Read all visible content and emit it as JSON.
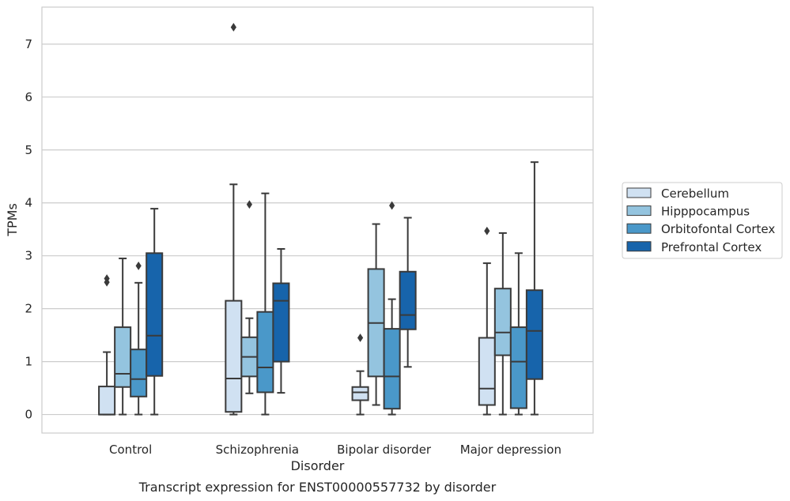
{
  "chart_data": {
    "type": "box",
    "caption": "Transcript expression for ENST00000557732 by disorder",
    "xlabel": "Disorder",
    "ylabel": "TPMs",
    "ylim": [
      -0.35,
      7.7
    ],
    "yticks": [
      0,
      1,
      2,
      3,
      4,
      5,
      6,
      7
    ],
    "grid": true,
    "legend_position": "right",
    "categories": [
      "Control",
      "Schizophrenia",
      "Bipolar disorder",
      "Major depression"
    ],
    "series": [
      {
        "name": "Cerebellum",
        "color": "#d0e1f2",
        "boxes": [
          {
            "whisker_low": 0,
            "q1": 0,
            "median": 0,
            "q3": 0.53,
            "whisker_high": 1.18,
            "outliers": [
              2.5,
              2.57
            ]
          },
          {
            "whisker_low": 0,
            "q1": 0.05,
            "median": 0.68,
            "q3": 2.15,
            "whisker_high": 4.35,
            "outliers": [
              7.32
            ]
          },
          {
            "whisker_low": 0,
            "q1": 0.27,
            "median": 0.42,
            "q3": 0.52,
            "whisker_high": 0.82,
            "outliers": [
              1.45
            ]
          },
          {
            "whisker_low": 0,
            "q1": 0.18,
            "median": 0.49,
            "q3": 1.45,
            "whisker_high": 2.86,
            "outliers": [
              3.47
            ]
          }
        ]
      },
      {
        "name": "Hipppocampus",
        "color": "#94c4df",
        "boxes": [
          {
            "whisker_low": 0,
            "q1": 0.52,
            "median": 0.77,
            "q3": 1.65,
            "whisker_high": 2.95,
            "outliers": []
          },
          {
            "whisker_low": 0.4,
            "q1": 0.72,
            "median": 1.09,
            "q3": 1.46,
            "whisker_high": 1.82,
            "outliers": [
              3.97
            ]
          },
          {
            "whisker_low": 0.18,
            "q1": 0.72,
            "median": 1.73,
            "q3": 2.75,
            "whisker_high": 3.6,
            "outliers": []
          },
          {
            "whisker_low": 0,
            "q1": 1.12,
            "median": 1.55,
            "q3": 2.38,
            "whisker_high": 3.43,
            "outliers": []
          }
        ]
      },
      {
        "name": "Orbitofontal Cortex",
        "color": "#4a98c9",
        "boxes": [
          {
            "whisker_low": 0,
            "q1": 0.34,
            "median": 0.67,
            "q3": 1.23,
            "whisker_high": 2.49,
            "outliers": [
              2.81
            ]
          },
          {
            "whisker_low": 0,
            "q1": 0.42,
            "median": 0.89,
            "q3": 1.94,
            "whisker_high": 4.18,
            "outliers": []
          },
          {
            "whisker_low": 0,
            "q1": 0.11,
            "median": 0.72,
            "q3": 1.62,
            "whisker_high": 2.18,
            "outliers": [
              3.95
            ]
          },
          {
            "whisker_low": 0,
            "q1": 0.12,
            "median": 1.0,
            "q3": 1.65,
            "whisker_high": 3.05,
            "outliers": []
          }
        ]
      },
      {
        "name": "Prefrontal Cortex",
        "color": "#1764ab",
        "boxes": [
          {
            "whisker_low": 0,
            "q1": 0.73,
            "median": 1.49,
            "q3": 3.05,
            "whisker_high": 3.89,
            "outliers": []
          },
          {
            "whisker_low": 0.41,
            "q1": 1.0,
            "median": 2.15,
            "q3": 2.48,
            "whisker_high": 3.13,
            "outliers": []
          },
          {
            "whisker_low": 0.9,
            "q1": 1.61,
            "median": 1.88,
            "q3": 2.7,
            "whisker_high": 3.72,
            "outliers": []
          },
          {
            "whisker_low": 0,
            "q1": 0.67,
            "median": 1.58,
            "q3": 2.35,
            "whisker_high": 4.77,
            "outliers": []
          }
        ]
      }
    ]
  }
}
